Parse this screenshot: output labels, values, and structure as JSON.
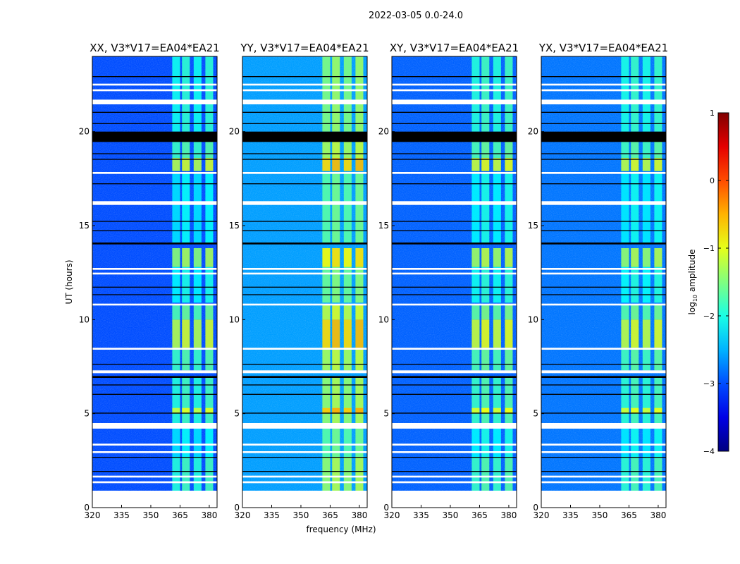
{
  "chart_data": {
    "type": "heatmap",
    "suptitle": "2022-03-05 0.0-24.0",
    "xlabel": "frequency (MHz)",
    "ylabel": "UT (hours)",
    "xlim": [
      320,
      384
    ],
    "ylim": [
      0,
      24
    ],
    "xticks": [
      320,
      335,
      350,
      365,
      380
    ],
    "yticks": [
      0,
      5,
      10,
      15,
      20
    ],
    "panels": [
      {
        "title": "XX, V3*V17=EA04*EA21",
        "background_level": -3.0,
        "rfi_offset": -0.2
      },
      {
        "title": "YY, V3*V17=EA04*EA21",
        "background_level": -2.6,
        "rfi_offset": 0.35
      },
      {
        "title": "XY, V3*V17=EA04*EA21",
        "background_level": -2.9,
        "rfi_offset": -0.1
      },
      {
        "title": "YX, V3*V17=EA04*EA21",
        "background_level": -2.8,
        "rfi_offset": -0.15
      }
    ],
    "rfi_bands_mhz": [
      [
        361,
        365
      ],
      [
        366,
        370
      ],
      [
        372,
        376
      ],
      [
        378,
        382
      ]
    ],
    "rfi_segments": [
      {
        "start": 0.9,
        "end": 2.7,
        "level": -1.7
      },
      {
        "start": 2.7,
        "end": 4.2,
        "level": -2.0
      },
      {
        "start": 4.5,
        "end": 7.0,
        "level": -1.7
      },
      {
        "start": 5.0,
        "end": 5.3,
        "level": -0.9
      },
      {
        "start": 7.3,
        "end": 8.5,
        "level": -1.6
      },
      {
        "start": 8.5,
        "end": 10.0,
        "level": -1.0
      },
      {
        "start": 10.0,
        "end": 10.8,
        "level": -1.5
      },
      {
        "start": 10.9,
        "end": 12.8,
        "level": -1.9
      },
      {
        "start": 12.8,
        "end": 13.8,
        "level": -1.2
      },
      {
        "start": 14.1,
        "end": 17.8,
        "level": -2.0
      },
      {
        "start": 17.9,
        "end": 18.6,
        "level": -1.0
      },
      {
        "start": 18.6,
        "end": 19.5,
        "level": -1.6
      },
      {
        "start": 20.0,
        "end": 24.0,
        "level": -1.8
      }
    ],
    "flagged_white_hours": [
      [
        0,
        0.9
      ],
      [
        1.3,
        1.4
      ],
      [
        1.6,
        1.7
      ],
      [
        2.9,
        3.0
      ],
      [
        3.3,
        3.4
      ],
      [
        4.2,
        4.5
      ],
      [
        7.15,
        7.3
      ],
      [
        8.4,
        8.5
      ],
      [
        10.75,
        10.85
      ],
      [
        12.4,
        12.5
      ],
      [
        12.65,
        12.75
      ],
      [
        16.1,
        16.3
      ],
      [
        17.75,
        17.85
      ],
      [
        21.45,
        21.7
      ],
      [
        22.15,
        22.25
      ],
      [
        22.45,
        22.55
      ]
    ],
    "flagged_black_hours": [
      [
        1.9,
        1.95
      ],
      [
        2.65,
        2.7
      ],
      [
        5.0,
        5.05
      ],
      [
        6.0,
        6.05
      ],
      [
        6.5,
        6.55
      ],
      [
        6.9,
        7.0
      ],
      [
        7.6,
        7.65
      ],
      [
        11.3,
        11.35
      ],
      [
        11.7,
        11.75
      ],
      [
        14.0,
        14.1
      ],
      [
        14.7,
        14.75
      ],
      [
        15.2,
        15.25
      ],
      [
        17.2,
        17.25
      ],
      [
        18.5,
        18.55
      ],
      [
        18.8,
        18.85
      ],
      [
        19.45,
        20.0
      ],
      [
        20.4,
        20.45
      ],
      [
        21.0,
        21.05
      ],
      [
        22.9,
        22.95
      ]
    ],
    "colorbar": {
      "label": "log10 amplitude",
      "label_base": "log",
      "label_sub": "10",
      "label_rest": " amplitude",
      "range": [
        -4,
        1
      ],
      "ticks": [
        "1",
        "0",
        "−1",
        "−2",
        "−3",
        "−4"
      ],
      "tick_values": [
        1,
        0,
        -1,
        -2,
        -3,
        -4
      ],
      "colormap": "jet"
    }
  }
}
